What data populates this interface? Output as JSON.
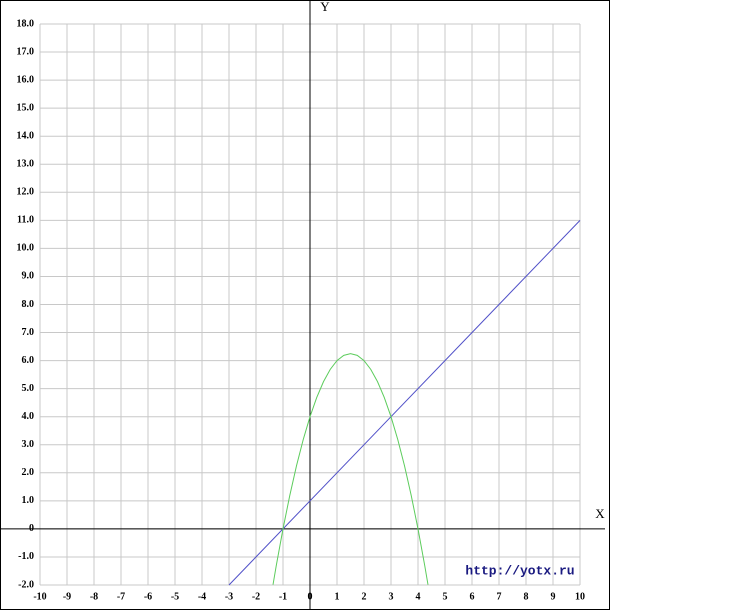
{
  "chart_data": {
    "type": "line",
    "x_label": "X",
    "y_label": "Y",
    "watermark": "http://yotx.ru",
    "xlim": [
      -10,
      10
    ],
    "ylim": [
      -2,
      18
    ],
    "xticks": [
      -10,
      -9,
      -8,
      -7,
      -6,
      -5,
      -4,
      -3,
      -2,
      -1,
      0,
      1,
      2,
      3,
      4,
      5,
      6,
      7,
      8,
      9,
      10
    ],
    "yticks": [
      {
        "value": -2,
        "label": "-2.0"
      },
      {
        "value": -1,
        "label": "-1.0"
      },
      0,
      {
        "value": 1,
        "label": "1.0"
      },
      {
        "value": 2,
        "label": "2.0"
      },
      {
        "value": 3,
        "label": "3.0"
      },
      {
        "value": 4,
        "label": "4.0"
      },
      {
        "value": 5,
        "label": "5.0"
      },
      {
        "value": 6,
        "label": "6.0"
      },
      {
        "value": 7,
        "label": "7.0"
      },
      {
        "value": 8,
        "label": "8.0"
      },
      {
        "value": 9,
        "label": "9.0"
      },
      {
        "value": 10,
        "label": "10.0"
      },
      {
        "value": 11,
        "label": "11.0"
      },
      {
        "value": 12,
        "label": "12.0"
      },
      {
        "value": 13,
        "label": "13.0"
      },
      {
        "value": 14,
        "label": "14.0"
      },
      {
        "value": 15,
        "label": "15.0"
      },
      {
        "value": 16,
        "label": "16.0"
      },
      {
        "value": 17,
        "label": "17.0"
      },
      {
        "value": 18,
        "label": "18.0"
      }
    ],
    "grid": true,
    "series": [
      {
        "color": "#5050c8",
        "x": [
          -3,
          10
        ],
        "values": [
          -2,
          11
        ]
      },
      {
        "color": "#5ccc5c",
        "x": [
          -1.37,
          -1.25,
          -1,
          -0.75,
          -0.5,
          -0.25,
          0,
          0.25,
          0.5,
          0.75,
          1,
          1.25,
          1.5,
          1.75,
          2,
          2.25,
          2.5,
          2.75,
          3,
          3.25,
          3.5,
          3.75,
          4,
          4.25,
          4.37
        ],
        "values": [
          -1.99,
          -1.3125,
          0,
          1.1875,
          2.25,
          3.1875,
          4,
          4.6875,
          5.25,
          5.6875,
          6,
          6.1875,
          6.25,
          6.1875,
          6,
          5.6875,
          5.25,
          4.6875,
          4,
          3.1875,
          2.25,
          1.1875,
          0,
          -1.3125,
          -1.99
        ]
      }
    ]
  }
}
